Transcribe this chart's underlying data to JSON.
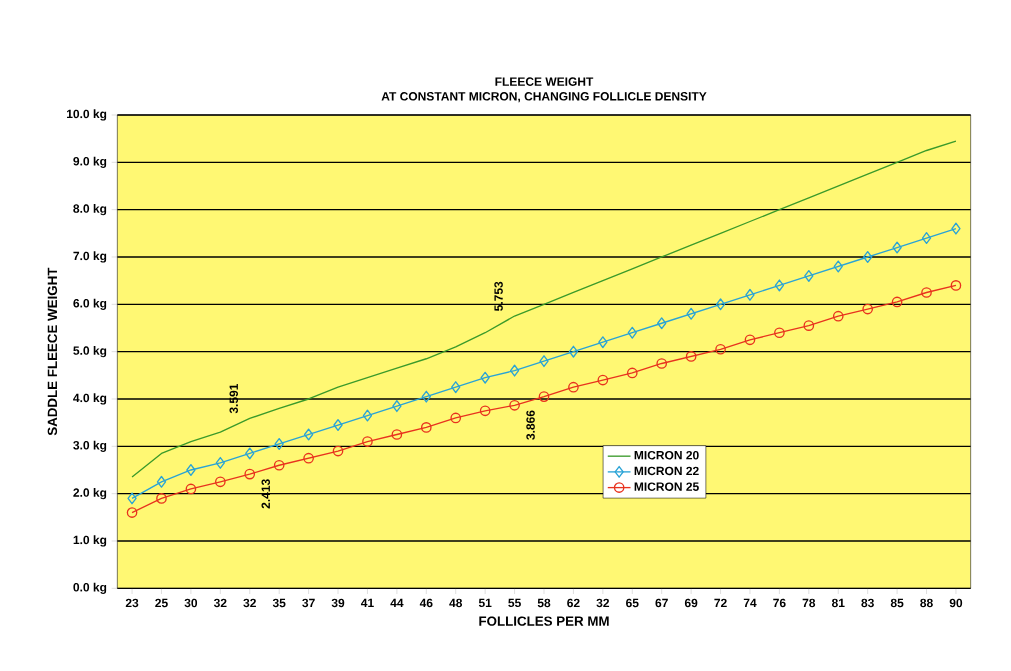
{
  "chart_data": {
    "type": "line",
    "title": "FLEECE WEIGHT",
    "subtitle": "AT CONSTANT MICRON, CHANGING FOLLICLE DENSITY",
    "xlabel": "FOLLICLES PER MM",
    "ylabel": "SADDLE FLEECE WEIGHT",
    "categories": [
      "23",
      "25",
      "30",
      "32",
      "32",
      "35",
      "37",
      "39",
      "41",
      "44",
      "46",
      "48",
      "51",
      "55",
      "58",
      "62",
      "32",
      "65",
      "67",
      "69",
      "72",
      "74",
      "76",
      "78",
      "81",
      "83",
      "85",
      "88",
      "90"
    ],
    "series": [
      {
        "name": "MICRON 20",
        "color": "#3a9a2a",
        "marker": "none",
        "values": [
          2.35,
          2.85,
          3.1,
          3.3,
          3.591,
          3.8,
          4.0,
          4.25,
          4.45,
          4.65,
          4.85,
          5.1,
          5.4,
          5.753,
          6.0,
          6.25,
          6.5,
          6.75,
          7.0,
          7.25,
          7.5,
          7.75,
          8.0,
          8.25,
          8.5,
          8.75,
          9.0,
          9.25,
          9.45
        ],
        "value_labels": [
          null,
          null,
          null,
          null,
          "3.591",
          null,
          null,
          null,
          null,
          null,
          null,
          null,
          null,
          "5.753",
          null,
          null,
          null,
          null,
          null,
          null,
          null,
          null,
          null,
          null,
          null,
          null,
          null,
          null,
          null
        ]
      },
      {
        "name": "MICRON 22",
        "color": "#29a3d6",
        "marker": "diamond",
        "values": [
          1.9,
          2.25,
          2.5,
          2.65,
          2.85,
          3.05,
          3.25,
          3.45,
          3.65,
          3.85,
          4.05,
          4.25,
          4.45,
          4.6,
          4.8,
          5.0,
          5.2,
          5.4,
          5.6,
          5.8,
          6.0,
          6.2,
          6.4,
          6.6,
          6.8,
          7.0,
          7.2,
          7.4,
          7.6
        ]
      },
      {
        "name": "MICRON 25",
        "color": "#e8321e",
        "marker": "circle",
        "values": [
          1.6,
          1.9,
          2.1,
          2.25,
          2.413,
          2.6,
          2.75,
          2.9,
          3.1,
          3.25,
          3.4,
          3.6,
          3.75,
          3.866,
          4.05,
          4.25,
          4.4,
          4.55,
          4.75,
          4.9,
          5.05,
          5.25,
          5.4,
          5.55,
          5.75,
          5.9,
          6.05,
          6.25,
          6.4
        ],
        "value_labels": [
          null,
          null,
          null,
          null,
          "2.413",
          null,
          null,
          null,
          null,
          null,
          null,
          null,
          null,
          "3.866",
          null,
          null,
          null,
          null,
          null,
          null,
          null,
          null,
          null,
          null,
          null,
          null,
          null,
          null,
          null
        ]
      }
    ],
    "ylim": [
      0,
      10
    ],
    "yticks": [
      {
        "value": 0,
        "label": "0.0 kg"
      },
      {
        "value": 1,
        "label": "1.0 kg"
      },
      {
        "value": 2,
        "label": "2.0 kg"
      },
      {
        "value": 3,
        "label": "3.0 kg"
      },
      {
        "value": 4,
        "label": "4.0 kg"
      },
      {
        "value": 5,
        "label": "5.0 kg"
      },
      {
        "value": 6,
        "label": "6.0 kg"
      },
      {
        "value": 7,
        "label": "7.0 kg"
      },
      {
        "value": 8,
        "label": "8.0 kg"
      },
      {
        "value": 9,
        "label": "9.0 kg"
      },
      {
        "value": 10,
        "label": "10.0 kg"
      }
    ],
    "grid": "y",
    "legend": "bottom right"
  }
}
